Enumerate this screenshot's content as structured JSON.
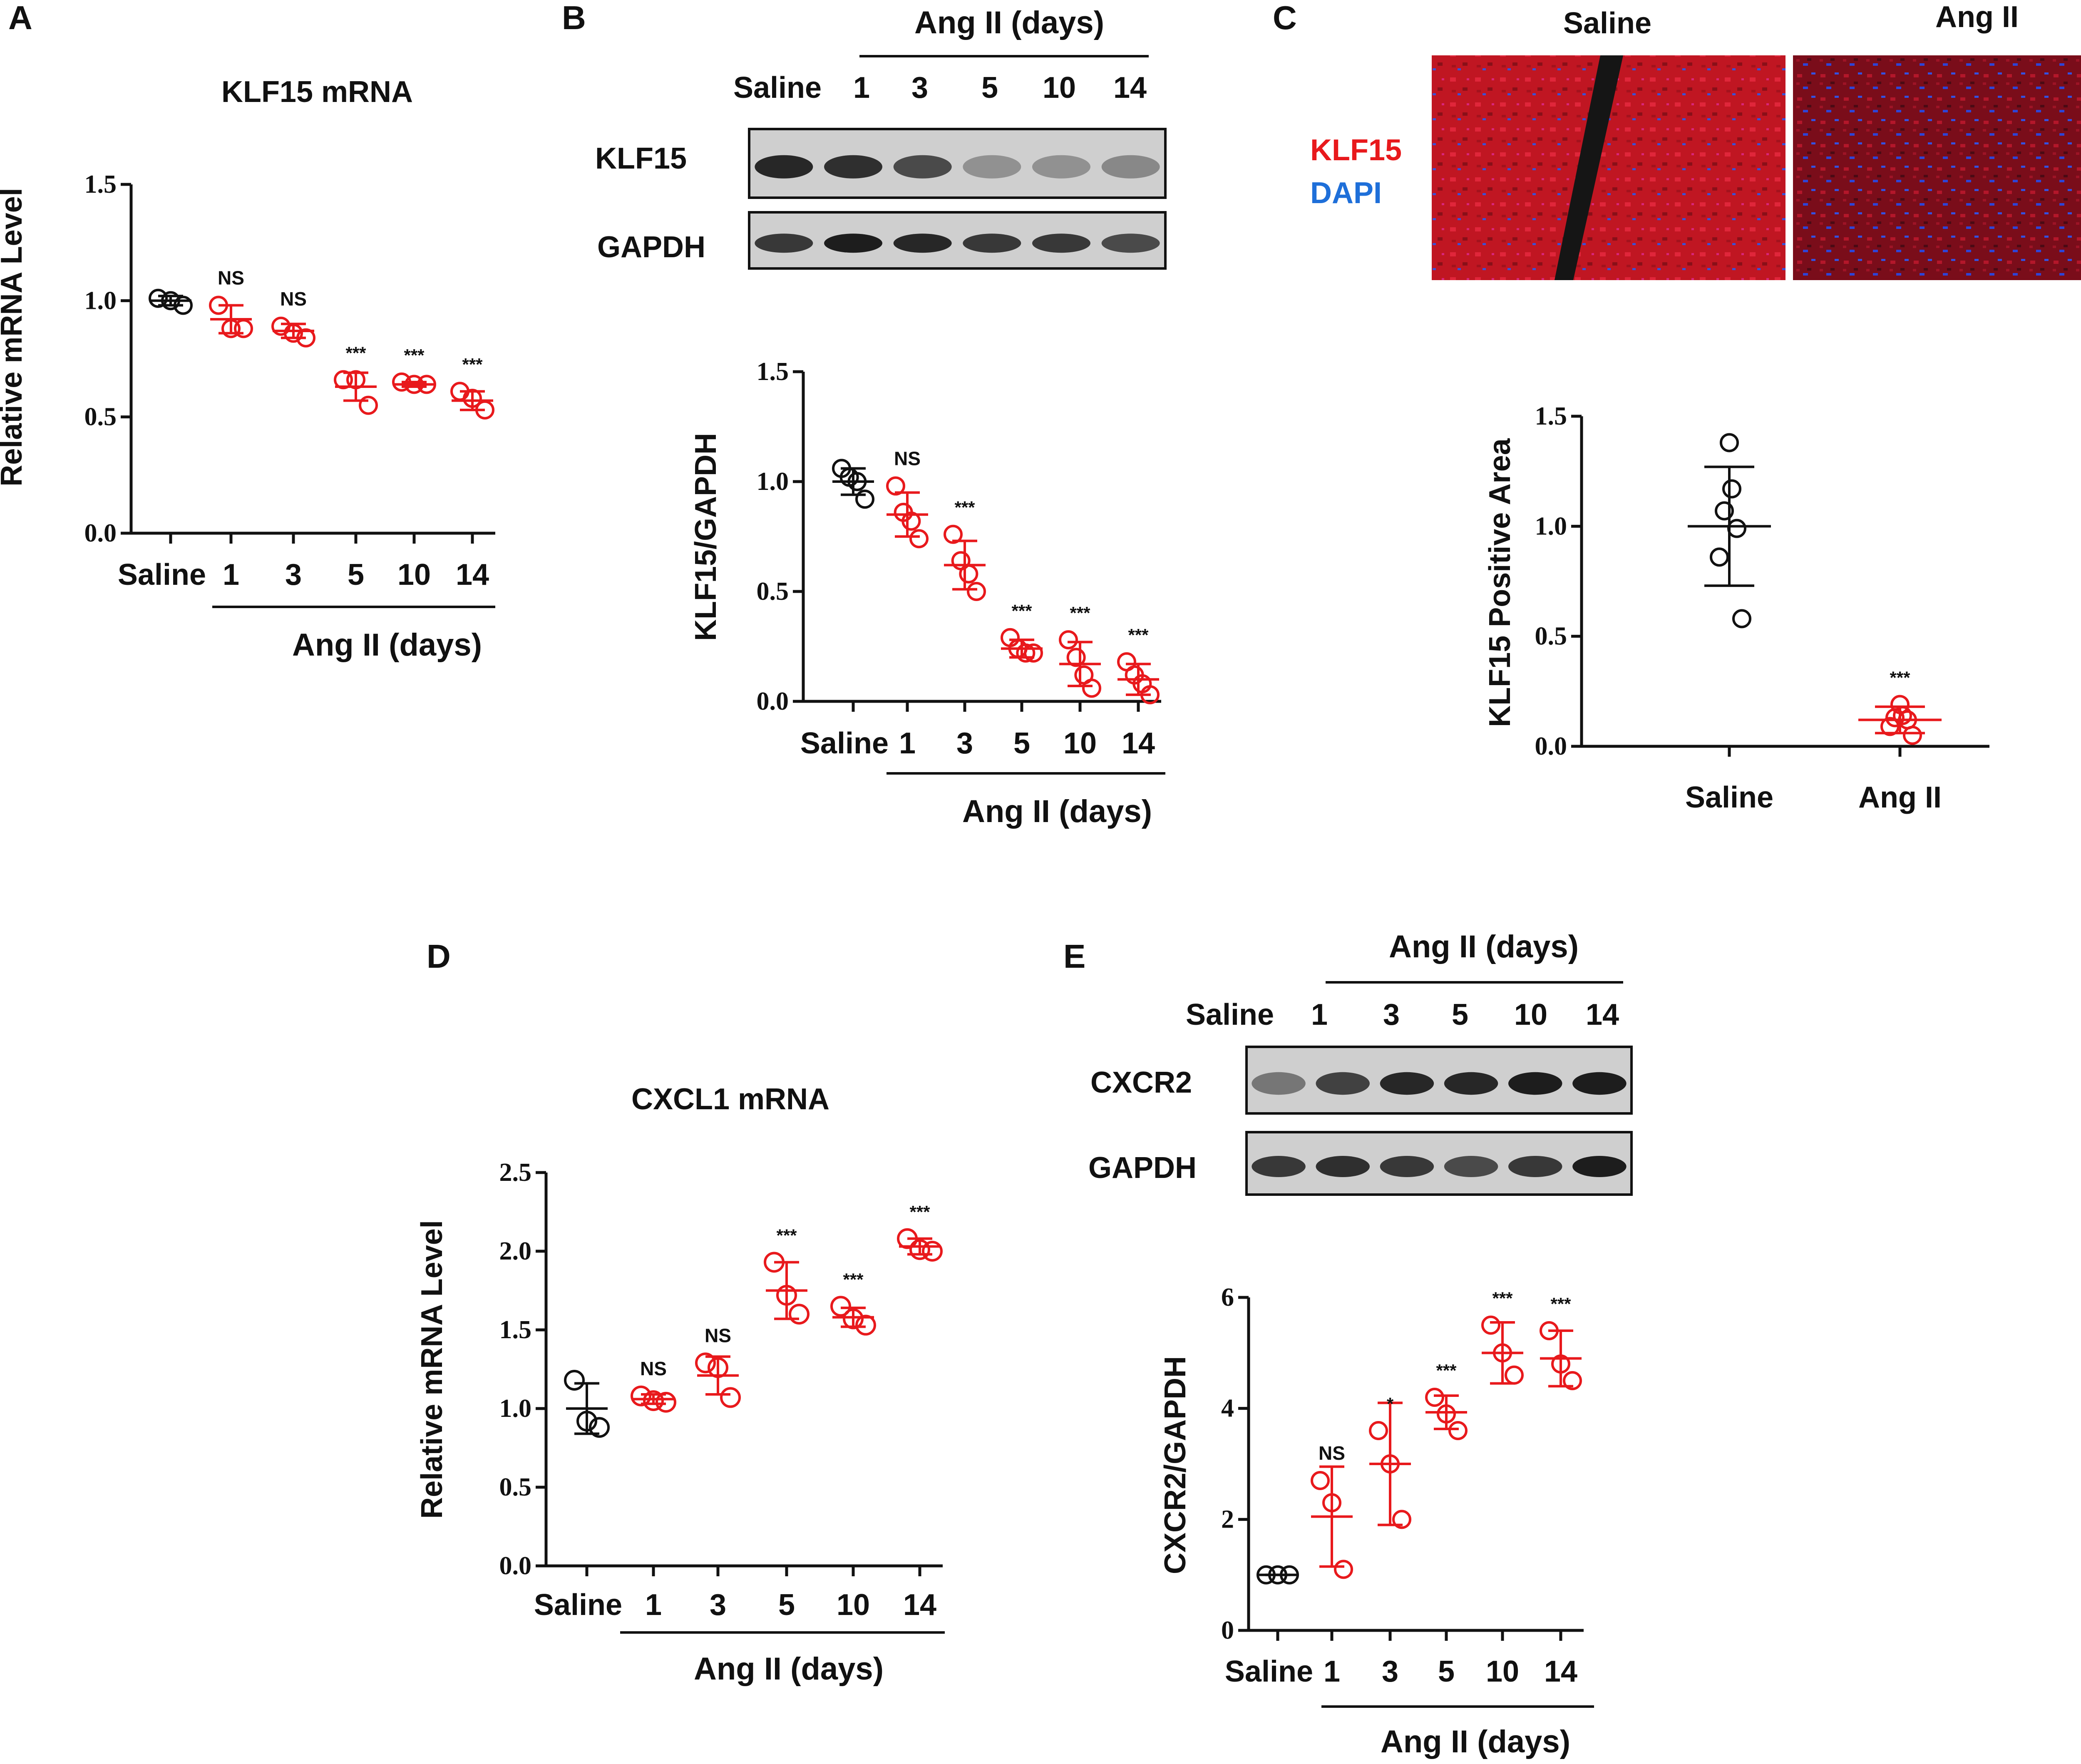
{
  "colors": {
    "black": "#111111",
    "red": "#e8191c",
    "blue_label": "#1e6fd9",
    "blot_bg": "#cfcfcf",
    "blot_band": "#1d1d1d"
  },
  "panels": {
    "A": {
      "letter": "A",
      "title": "KLF15 mRNA"
    },
    "B": {
      "letter": "B"
    },
    "C": {
      "letter": "C",
      "img_labels": [
        "Saline",
        "Ang II"
      ],
      "stain1": "KLF15",
      "stain2": "DAPI"
    },
    "D": {
      "letter": "D",
      "title": "CXCL1 mRNA"
    },
    "E": {
      "letter": "E"
    }
  },
  "group_label": "Ang II (days)",
  "blots": [
    {
      "panel": "B",
      "header": "Ang II (days)",
      "lanes": [
        "Saline",
        "1",
        "3",
        "5",
        "10",
        "14"
      ],
      "rows": [
        {
          "label": "KLF15",
          "intensity": [
            0.95,
            0.9,
            0.75,
            0.35,
            0.35,
            0.4
          ]
        },
        {
          "label": "GAPDH",
          "intensity": [
            0.85,
            1.0,
            0.95,
            0.85,
            0.85,
            0.75
          ]
        }
      ]
    },
    {
      "panel": "E",
      "header": "Ang II (days)",
      "lanes": [
        "Saline",
        "1",
        "3",
        "5",
        "10",
        "14"
      ],
      "rows": [
        {
          "label": "CXCR2",
          "intensity": [
            0.5,
            0.8,
            0.95,
            0.95,
            1.0,
            1.0
          ]
        },
        {
          "label": "GAPDH",
          "intensity": [
            0.85,
            0.9,
            0.85,
            0.75,
            0.85,
            1.0
          ]
        }
      ]
    }
  ],
  "chart_data": [
    {
      "panel": "A",
      "type": "scatter",
      "title": "KLF15 mRNA",
      "ylabel": "Relative mRNA Level",
      "categories": [
        "Saline",
        "1",
        "3",
        "5",
        "10",
        "14"
      ],
      "group_label": "Ang II (days)",
      "ylim": [
        0,
        1.5
      ],
      "yticks": [
        "0.0",
        "0.5",
        "1.0",
        "1.5"
      ],
      "series": [
        {
          "points": [
            1.01,
            1.0,
            0.98
          ],
          "mean": 1.0,
          "sd": 0.02,
          "sig": ""
        },
        {
          "points": [
            0.98,
            0.88,
            0.88
          ],
          "mean": 0.92,
          "sd": 0.06,
          "sig": "NS"
        },
        {
          "points": [
            0.89,
            0.86,
            0.84
          ],
          "mean": 0.87,
          "sd": 0.03,
          "sig": "NS"
        },
        {
          "points": [
            0.66,
            0.66,
            0.55
          ],
          "mean": 0.63,
          "sd": 0.06,
          "sig": "***"
        },
        {
          "points": [
            0.65,
            0.64,
            0.64
          ],
          "mean": 0.64,
          "sd": 0.01,
          "sig": "***"
        },
        {
          "points": [
            0.61,
            0.58,
            0.53
          ],
          "mean": 0.57,
          "sd": 0.04,
          "sig": "***"
        }
      ]
    },
    {
      "panel": "B",
      "type": "scatter",
      "title": "",
      "ylabel": "KLF15/GAPDH",
      "categories": [
        "Saline",
        "1",
        "3",
        "5",
        "10",
        "14"
      ],
      "group_label": "Ang II (days)",
      "ylim": [
        0,
        1.5
      ],
      "yticks": [
        "0.0",
        "0.5",
        "1.0",
        "1.5"
      ],
      "series": [
        {
          "points": [
            1.06,
            1.02,
            1.0,
            0.92
          ],
          "mean": 1.0,
          "sd": 0.06,
          "sig": ""
        },
        {
          "points": [
            0.98,
            0.86,
            0.82,
            0.74
          ],
          "mean": 0.85,
          "sd": 0.1,
          "sig": "NS"
        },
        {
          "points": [
            0.76,
            0.64,
            0.58,
            0.5
          ],
          "mean": 0.62,
          "sd": 0.11,
          "sig": "***"
        },
        {
          "points": [
            0.29,
            0.24,
            0.22,
            0.22
          ],
          "mean": 0.24,
          "sd": 0.04,
          "sig": "***"
        },
        {
          "points": [
            0.28,
            0.2,
            0.12,
            0.06
          ],
          "mean": 0.17,
          "sd": 0.1,
          "sig": "***"
        },
        {
          "points": [
            0.18,
            0.12,
            0.08,
            0.03
          ],
          "mean": 0.1,
          "sd": 0.07,
          "sig": "***"
        }
      ]
    },
    {
      "panel": "C",
      "type": "scatter",
      "title": "",
      "ylabel": "KLF15 Positive Area",
      "categories": [
        "Saline",
        "Ang II"
      ],
      "group_label": "",
      "ylim": [
        0,
        1.5
      ],
      "yticks": [
        "0.0",
        "0.5",
        "1.0",
        "1.5"
      ],
      "series": [
        {
          "points": [
            1.38,
            1.17,
            1.07,
            0.99,
            0.86,
            0.58
          ],
          "mean": 1.0,
          "sd": 0.27,
          "sig": ""
        },
        {
          "points": [
            0.19,
            0.14,
            0.13,
            0.12,
            0.09,
            0.05
          ],
          "mean": 0.12,
          "sd": 0.06,
          "sig": "***"
        }
      ]
    },
    {
      "panel": "D",
      "type": "scatter",
      "title": "CXCL1 mRNA",
      "ylabel": "Relative mRNA Level",
      "categories": [
        "Saline",
        "1",
        "3",
        "5",
        "10",
        "14"
      ],
      "group_label": "Ang II (days)",
      "ylim": [
        0,
        2.5
      ],
      "yticks": [
        "0.0",
        "0.5",
        "1.0",
        "1.5",
        "2.0",
        "2.5"
      ],
      "series": [
        {
          "points": [
            1.18,
            0.92,
            0.88
          ],
          "mean": 1.0,
          "sd": 0.16,
          "sig": ""
        },
        {
          "points": [
            1.08,
            1.05,
            1.04
          ],
          "mean": 1.06,
          "sd": 0.03,
          "sig": "NS"
        },
        {
          "points": [
            1.29,
            1.26,
            1.07
          ],
          "mean": 1.21,
          "sd": 0.12,
          "sig": "NS"
        },
        {
          "points": [
            1.93,
            1.72,
            1.6
          ],
          "mean": 1.75,
          "sd": 0.18,
          "sig": "***"
        },
        {
          "points": [
            1.65,
            1.57,
            1.53
          ],
          "mean": 1.58,
          "sd": 0.06,
          "sig": "***"
        },
        {
          "points": [
            2.08,
            2.01,
            2.0
          ],
          "mean": 2.03,
          "sd": 0.05,
          "sig": "***"
        }
      ]
    },
    {
      "panel": "E",
      "type": "scatter",
      "title": "",
      "ylabel": "CXCR2/GAPDH",
      "categories": [
        "Saline",
        "1",
        "3",
        "5",
        "10",
        "14"
      ],
      "group_label": "Ang II (days)",
      "ylim": [
        0,
        6
      ],
      "yticks": [
        "0",
        "2",
        "4",
        "6"
      ],
      "series": [
        {
          "points": [
            1.0,
            1.0,
            1.0
          ],
          "mean": 1.0,
          "sd": 0.0,
          "sig": ""
        },
        {
          "points": [
            2.7,
            2.3,
            1.1
          ],
          "mean": 2.05,
          "sd": 0.9,
          "sig": "NS"
        },
        {
          "points": [
            3.6,
            3.0,
            2.0
          ],
          "mean": 3.0,
          "sd": 1.1,
          "sig": "*"
        },
        {
          "points": [
            4.2,
            3.9,
            3.6
          ],
          "mean": 3.93,
          "sd": 0.3,
          "sig": "***"
        },
        {
          "points": [
            5.5,
            5.0,
            4.6
          ],
          "mean": 5.0,
          "sd": 0.55,
          "sig": "***"
        },
        {
          "points": [
            5.4,
            4.8,
            4.5
          ],
          "mean": 4.9,
          "sd": 0.5,
          "sig": "***"
        }
      ]
    }
  ]
}
